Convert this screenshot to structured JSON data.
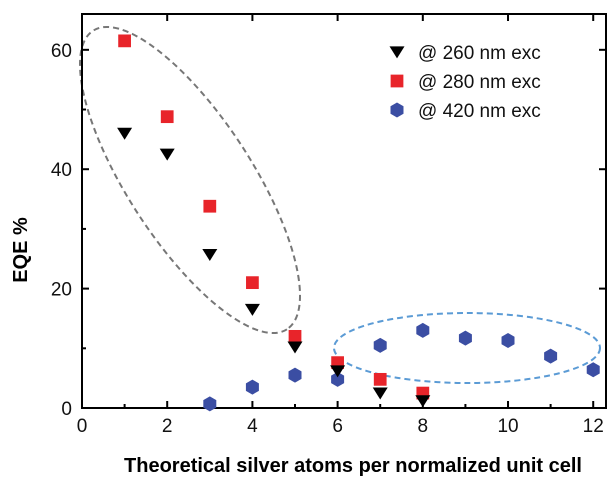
{
  "chart_data": {
    "type": "scatter",
    "title": "",
    "xlabel": "Theoretical silver atoms per normalized unit cell",
    "ylabel": "EQE %",
    "xlim": [
      0,
      12.3
    ],
    "ylim": [
      0,
      66
    ],
    "xticks": [
      0,
      2,
      4,
      6,
      8,
      10,
      12
    ],
    "yticks": [
      0,
      20,
      40,
      60
    ],
    "grid": false,
    "legend_position": "top-right",
    "series": [
      {
        "name": "@ 260 nm exc",
        "marker": "triangle-down",
        "color": "#000000",
        "x": [
          1,
          2,
          3,
          4,
          5,
          6,
          7,
          8
        ],
        "y": [
          46,
          42.5,
          25.7,
          16.5,
          10.2,
          6.2,
          2.5,
          1.2
        ]
      },
      {
        "name": "@ 280 nm exc",
        "marker": "square",
        "color": "#e8242a",
        "x": [
          1,
          2,
          3,
          4,
          5,
          6,
          7,
          8
        ],
        "y": [
          61.5,
          48.8,
          33.8,
          21,
          12,
          7.6,
          4.8,
          2.5
        ]
      },
      {
        "name": "@ 420 nm exc",
        "marker": "hexagon",
        "color": "#3b4ea3",
        "x": [
          3,
          4,
          5,
          6,
          7,
          8,
          9,
          10,
          11,
          12
        ],
        "y": [
          0.7,
          3.5,
          5.5,
          4.8,
          10.5,
          13,
          11.7,
          11.3,
          8.7,
          6.4
        ]
      }
    ]
  }
}
